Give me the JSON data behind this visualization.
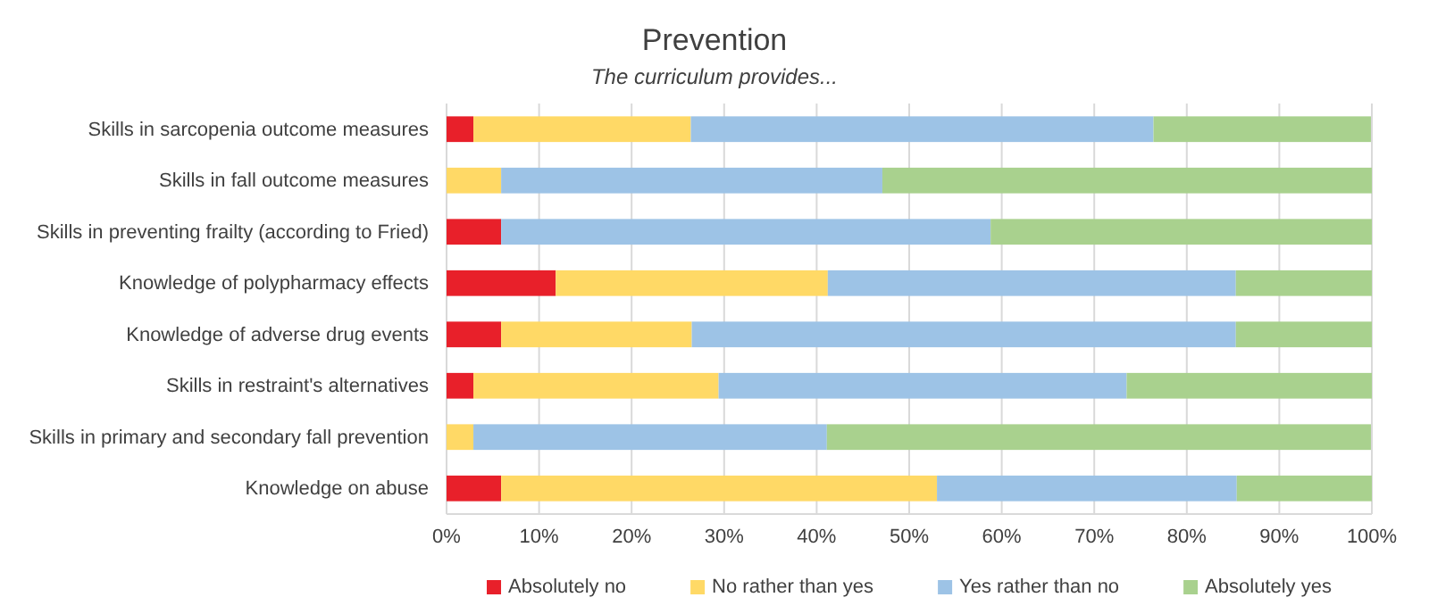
{
  "chart_data": {
    "type": "bar",
    "orientation": "horizontal",
    "stacked": true,
    "title": "Prevention",
    "subtitle": "The curriculum provides...",
    "categories": [
      "Skills in sarcopenia outcome measures",
      "Skills in fall outcome measures",
      "Skills in preventing frailty (according to Fried)",
      "Knowledge of polypharmacy effects",
      "Knowledge of adverse drug events",
      "Skills in restraint's alternatives",
      "Skills in primary and secondary fall prevention",
      "Knowledge on abuse"
    ],
    "series": [
      {
        "name": "Absolutely no",
        "color": "#e8202a",
        "values": [
          2.9,
          0,
          5.9,
          11.8,
          5.9,
          2.9,
          0,
          5.9
        ]
      },
      {
        "name": "No rather than yes",
        "color": "#ffd966",
        "values": [
          23.5,
          5.9,
          0,
          29.4,
          20.6,
          26.5,
          2.9,
          47.1
        ]
      },
      {
        "name": "Yes rather than no",
        "color": "#9dc3e6",
        "values": [
          50.0,
          41.2,
          52.9,
          44.1,
          58.8,
          44.1,
          38.2,
          32.4
        ]
      },
      {
        "name": "Absolutely yes",
        "color": "#a9d18e",
        "values": [
          23.5,
          52.9,
          41.2,
          14.7,
          14.7,
          26.5,
          58.8,
          14.6
        ]
      }
    ],
    "xlim": [
      0,
      100
    ],
    "xticks": [
      {
        "value": 0,
        "label": "0%"
      },
      {
        "value": 10,
        "label": "10%"
      },
      {
        "value": 20,
        "label": "20%"
      },
      {
        "value": 30,
        "label": "30%"
      },
      {
        "value": 40,
        "label": "40%"
      },
      {
        "value": 50,
        "label": "50%"
      },
      {
        "value": 60,
        "label": "60%"
      },
      {
        "value": 70,
        "label": "70%"
      },
      {
        "value": 80,
        "label": "80%"
      },
      {
        "value": 90,
        "label": "90%"
      },
      {
        "value": 100,
        "label": "100%"
      }
    ],
    "grid": "x",
    "legend": "bottom"
  }
}
